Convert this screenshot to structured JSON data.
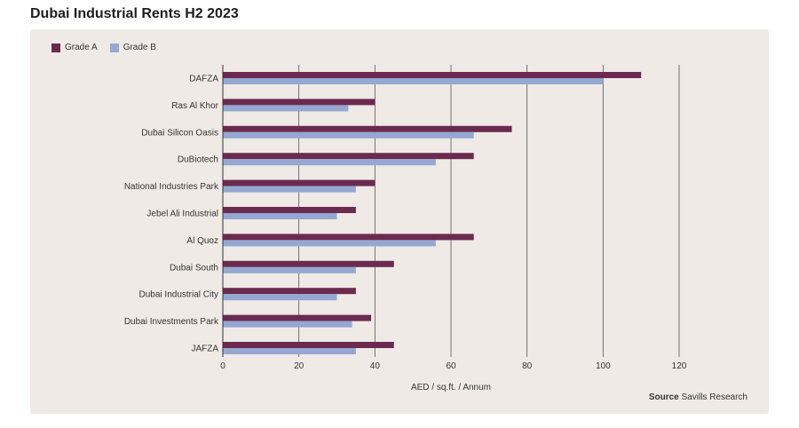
{
  "chart_data": {
    "type": "bar",
    "orientation": "horizontal",
    "title": "Dubai Industrial Rents H2 2023",
    "xlabel": "AED / sq.ft. / Annum",
    "ylabel": "",
    "xlim": [
      0,
      120
    ],
    "xticks": [
      0,
      20,
      40,
      60,
      80,
      100,
      120
    ],
    "grid": true,
    "legend_position": "top-left",
    "categories": [
      "DAFZA",
      "Ras Al Khor",
      "Dubai Silicon Oasis",
      "DuBiotech",
      "National Industries Park",
      "Jebel Ali Industrial",
      "Al Quoz",
      "Dubai South",
      "Dubai Industrial City",
      "Dubai Investments Park",
      "JAFZA"
    ],
    "series": [
      {
        "name": "Grade A",
        "color": "#6b2a4f",
        "values": [
          110,
          40,
          76,
          66,
          40,
          35,
          66,
          45,
          35,
          39,
          45
        ]
      },
      {
        "name": "Grade B",
        "color": "#95a8d2",
        "values": [
          100,
          33,
          66,
          56,
          35,
          30,
          56,
          35,
          30,
          34,
          35
        ]
      }
    ],
    "source_label": "Source",
    "source_text": "Savills Research"
  }
}
